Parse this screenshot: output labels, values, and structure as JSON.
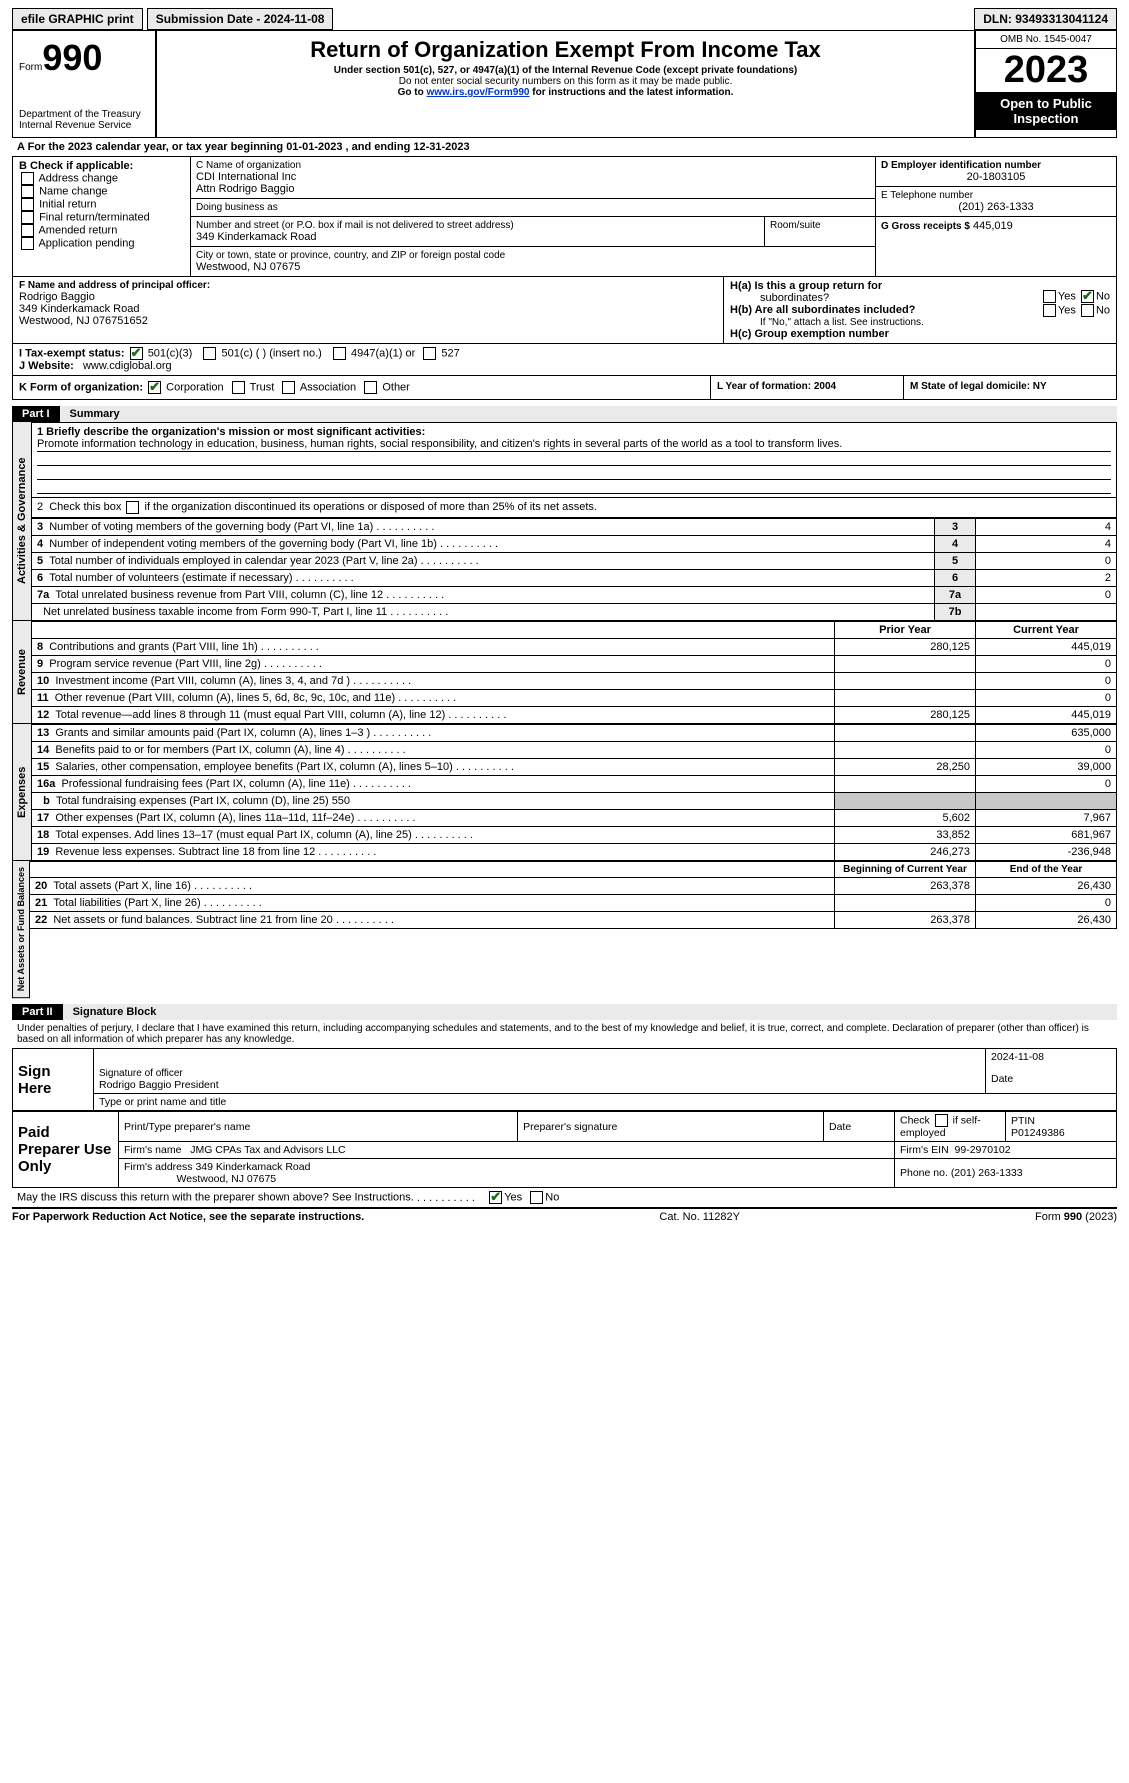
{
  "topbar": {
    "efile": "efile GRAPHIC print",
    "submission_label": "Submission Date - 2024-11-08",
    "dln_label": "DLN: 93493313041124"
  },
  "header": {
    "form_word": "Form",
    "form_num": "990",
    "title": "Return of Organization Exempt From Income Tax",
    "subtitle": "Under section 501(c), 527, or 4947(a)(1) of the Internal Revenue Code (except private foundations)",
    "warn": "Do not enter social security numbers on this form as it may be made public.",
    "goto_pre": "Go to ",
    "goto_link": "www.irs.gov/Form990",
    "goto_post": " for instructions and the latest information.",
    "dept": "Department of the Treasury",
    "irs": "Internal Revenue Service",
    "omb": "OMB No. 1545-0047",
    "year": "2023",
    "open": "Open to Public Inspection"
  },
  "A": {
    "line": "A For the 2023 calendar year, or tax year beginning 01-01-2023   , and ending 12-31-2023"
  },
  "B": {
    "title": "B Check if applicable:",
    "items": [
      "Address change",
      "Name change",
      "Initial return",
      "Final return/terminated",
      "Amended return",
      "Application pending"
    ]
  },
  "C": {
    "name_lbl": "C Name of organization",
    "name1": "CDI International Inc",
    "name2": "Attn Rodrigo Baggio",
    "dba_lbl": "Doing business as",
    "street_lbl": "Number and street (or P.O. box if mail is not delivered to street address)",
    "street": "349 Kinderkamack Road",
    "room_lbl": "Room/suite",
    "city_lbl": "City or town, state or province, country, and ZIP or foreign postal code",
    "city": "Westwood, NJ  07675"
  },
  "D": {
    "lbl": "D Employer identification number",
    "val": "20-1803105"
  },
  "E": {
    "lbl": "E Telephone number",
    "val": "(201) 263-1333"
  },
  "G": {
    "lbl": "G Gross receipts $",
    "val": "445,019"
  },
  "F": {
    "lbl": "F  Name and address of principal officer:",
    "l1": "Rodrigo Baggio",
    "l2": "349 Kinderkamack Road",
    "l3": "Westwood, NJ  076751652"
  },
  "H": {
    "a": "H(a)  Is this a group return for",
    "a2": "subordinates?",
    "b": "H(b)  Are all subordinates included?",
    "bnote": "If \"No,\" attach a list. See instructions.",
    "c": "H(c)  Group exemption number",
    "yes": "Yes",
    "no": "No"
  },
  "I": {
    "lbl": "I   Tax-exempt status:",
    "o1": "501(c)(3)",
    "o2": "501(c) (  ) (insert no.)",
    "o3": "4947(a)(1) or",
    "o4": "527"
  },
  "J": {
    "lbl": "J   Website:",
    "val": "www.cdiglobal.org"
  },
  "K": {
    "lbl": "K Form of organization:",
    "o1": "Corporation",
    "o2": "Trust",
    "o3": "Association",
    "o4": "Other"
  },
  "L": {
    "lbl": "L Year of formation: 2004"
  },
  "M": {
    "lbl": "M State of legal domicile: NY"
  },
  "part1": {
    "num": "Part I",
    "title": "Summary"
  },
  "section_labels": {
    "ag": "Activities & Governance",
    "rev": "Revenue",
    "exp": "Expenses",
    "nab": "Net Assets or Fund Balances"
  },
  "l1": {
    "lbl": "1  Briefly describe the organization's mission or most significant activities:",
    "text": "Promote information technology in education, business, human rights, social responsibility, and citizen's rights in several parts of the world as a tool to transform lives."
  },
  "l2": "2   Check this box      if the organization discontinued its operations or disposed of more than 25% of its net assets.",
  "rows_ag": [
    {
      "n": "3",
      "t": "Number of voting members of the governing body (Part VI, line 1a)",
      "k": "3",
      "v": "4"
    },
    {
      "n": "4",
      "t": "Number of independent voting members of the governing body (Part VI, line 1b)",
      "k": "4",
      "v": "4"
    },
    {
      "n": "5",
      "t": "Total number of individuals employed in calendar year 2023 (Part V, line 2a)",
      "k": "5",
      "v": "0"
    },
    {
      "n": "6",
      "t": "Total number of volunteers (estimate if necessary)",
      "k": "6",
      "v": "2"
    },
    {
      "n": "7a",
      "t": "Total unrelated business revenue from Part VIII, column (C), line 12",
      "k": "7a",
      "v": "0"
    },
    {
      "n": "",
      "t": "Net unrelated business taxable income from Form 990-T, Part I, line 11",
      "k": "7b",
      "v": ""
    }
  ],
  "col_headers": {
    "prior": "Prior Year",
    "current": "Current Year",
    "beg": "Beginning of Current Year",
    "end": "End of the Year"
  },
  "rows_rev": [
    {
      "n": "8",
      "t": "Contributions and grants (Part VIII, line 1h)",
      "p": "280,125",
      "c": "445,019"
    },
    {
      "n": "9",
      "t": "Program service revenue (Part VIII, line 2g)",
      "p": "",
      "c": "0"
    },
    {
      "n": "10",
      "t": "Investment income (Part VIII, column (A), lines 3, 4, and 7d )",
      "p": "",
      "c": "0"
    },
    {
      "n": "11",
      "t": "Other revenue (Part VIII, column (A), lines 5, 6d, 8c, 9c, 10c, and 11e)",
      "p": "",
      "c": "0"
    },
    {
      "n": "12",
      "t": "Total revenue—add lines 8 through 11 (must equal Part VIII, column (A), line 12)",
      "p": "280,125",
      "c": "445,019"
    }
  ],
  "rows_exp": [
    {
      "n": "13",
      "t": "Grants and similar amounts paid (Part IX, column (A), lines 1–3 )",
      "p": "",
      "c": "635,000"
    },
    {
      "n": "14",
      "t": "Benefits paid to or for members (Part IX, column (A), line 4)",
      "p": "",
      "c": "0"
    },
    {
      "n": "15",
      "t": "Salaries, other compensation, employee benefits (Part IX, column (A), lines 5–10)",
      "p": "28,250",
      "c": "39,000"
    },
    {
      "n": "16a",
      "t": "Professional fundraising fees (Part IX, column (A), line 11e)",
      "p": "",
      "c": "0"
    },
    {
      "n": "b",
      "t": "Total fundraising expenses (Part IX, column (D), line 25) 550",
      "shaded": true
    },
    {
      "n": "17",
      "t": "Other expenses (Part IX, column (A), lines 11a–11d, 11f–24e)",
      "p": "5,602",
      "c": "7,967"
    },
    {
      "n": "18",
      "t": "Total expenses. Add lines 13–17 (must equal Part IX, column (A), line 25)",
      "p": "33,852",
      "c": "681,967"
    },
    {
      "n": "19",
      "t": "Revenue less expenses. Subtract line 18 from line 12",
      "p": "246,273",
      "c": "-236,948"
    }
  ],
  "rows_nab": [
    {
      "n": "20",
      "t": "Total assets (Part X, line 16)",
      "p": "263,378",
      "c": "26,430"
    },
    {
      "n": "21",
      "t": "Total liabilities (Part X, line 26)",
      "p": "",
      "c": "0"
    },
    {
      "n": "22",
      "t": "Net assets or fund balances. Subtract line 21 from line 20",
      "p": "263,378",
      "c": "26,430"
    }
  ],
  "part2": {
    "num": "Part II",
    "title": "Signature Block"
  },
  "perjury": "Under penalties of perjury, I declare that I have examined this return, including accompanying schedules and statements, and to the best of my knowledge and belief, it is true, correct, and complete. Declaration of preparer (other than officer) is based on all information of which preparer has any knowledge.",
  "sign": {
    "here": "Sign Here",
    "sig_lbl": "Signature of officer",
    "date_lbl": "Date",
    "date_val": "2024-11-08",
    "name": "Rodrigo Baggio  President",
    "type_lbl": "Type or print name and title"
  },
  "paid": {
    "title": "Paid Preparer Use Only",
    "h1": "Print/Type preparer's name",
    "h2": "Preparer's signature",
    "h3": "Date",
    "h4_pre": "Check ",
    "h4_post": " if self-employed",
    "h5": "PTIN",
    "ptin": "P01249386",
    "firm_lbl": "Firm's name",
    "firm": "JMG CPAs Tax and Advisors LLC",
    "ein_lbl": "Firm's EIN",
    "ein": "99-2970102",
    "addr_lbl": "Firm's address",
    "addr1": "349 Kinderkamack Road",
    "addr2": "Westwood, NJ  07675",
    "phone_lbl": "Phone no.",
    "phone": "(201) 263-1333"
  },
  "discuss": "May the IRS discuss this return with the preparer shown above? See Instructions.",
  "footer": {
    "l": "For Paperwork Reduction Act Notice, see the separate instructions.",
    "c": "Cat. No. 11282Y",
    "r": "Form 990 (2023)"
  }
}
